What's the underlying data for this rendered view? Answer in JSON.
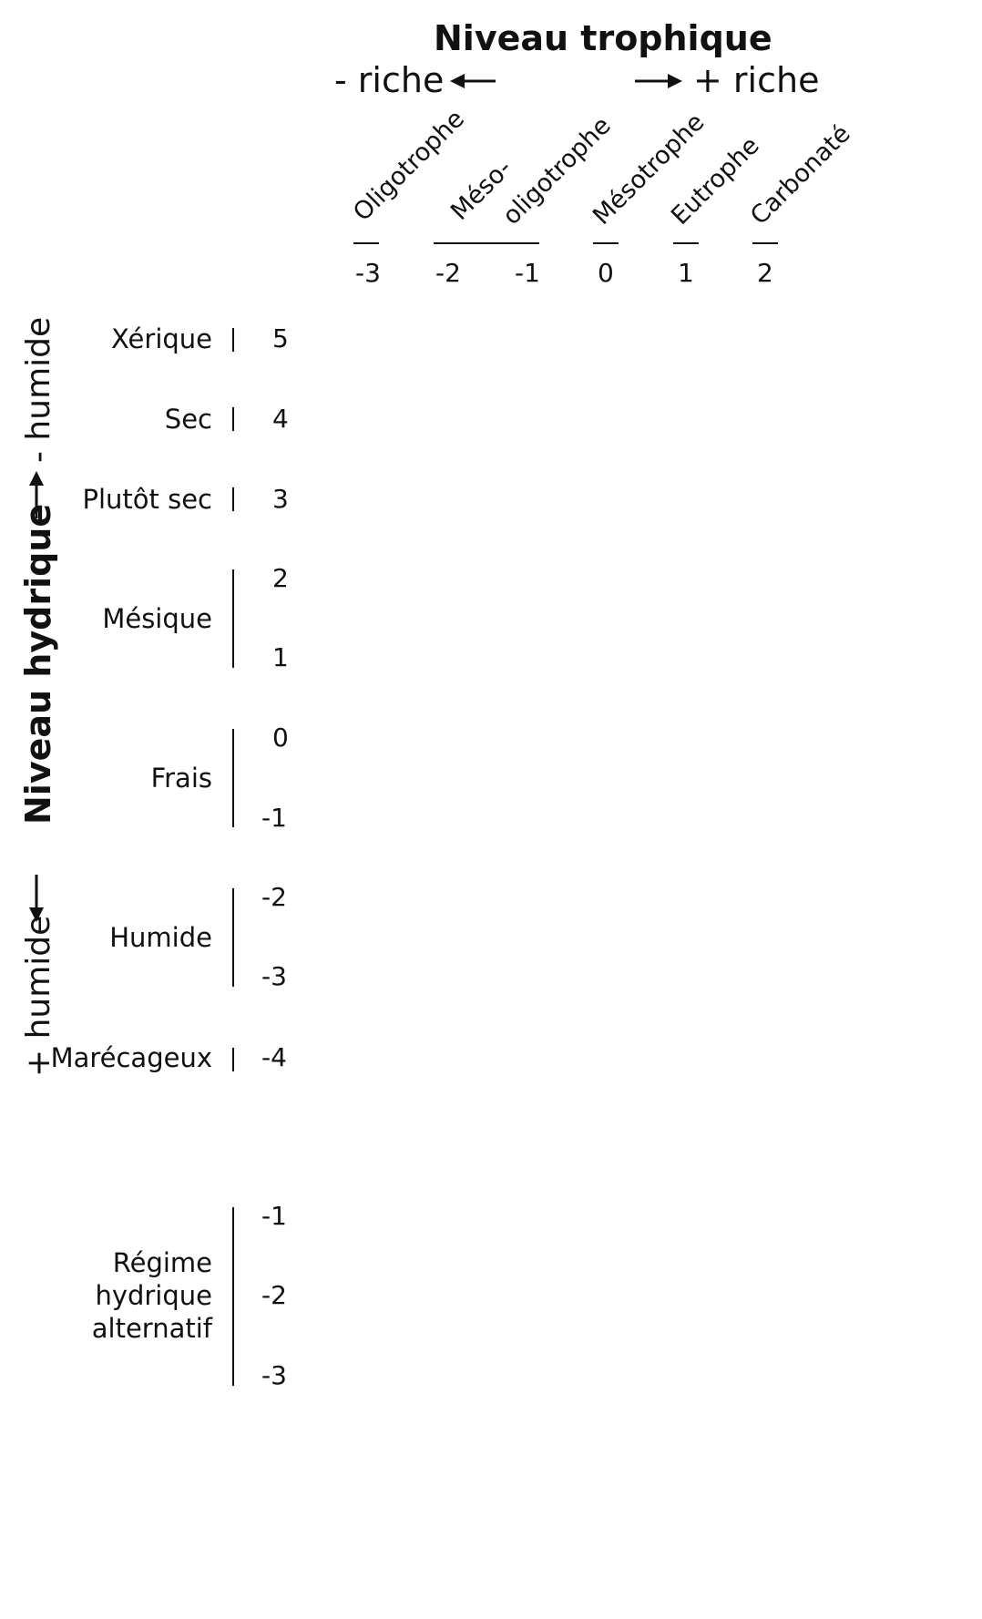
{
  "trophic": {
    "title": "Niveau trophique",
    "less_rich": "- riche",
    "more_rich": "+ riche",
    "categories": [
      "Oligotrophe",
      "Méso-",
      "oligotrophe",
      "Mésotrophe",
      "Eutrophe",
      "Carbonaté"
    ],
    "values": [
      "-3",
      "-2",
      "-1",
      "0",
      "1",
      "2"
    ]
  },
  "hydric": {
    "title": "Niveau hydrique",
    "less_wet": "- humide",
    "more_wet": "+ humide",
    "levels": [
      {
        "label": "Xérique",
        "values": [
          "5"
        ]
      },
      {
        "label": "Sec",
        "values": [
          "4"
        ]
      },
      {
        "label": "Plutôt sec",
        "values": [
          "3"
        ]
      },
      {
        "label": "Mésique",
        "values": [
          "2",
          "1"
        ]
      },
      {
        "label": "Frais",
        "values": [
          "0",
          "-1"
        ]
      },
      {
        "label": "Humide",
        "values": [
          "-2",
          "-3"
        ]
      },
      {
        "label": "Marécageux",
        "values": [
          "-4"
        ]
      }
    ],
    "alternating": {
      "label_lines": [
        "Régime",
        "hydrique",
        "alternatif"
      ],
      "values": [
        "-1",
        "-2",
        "-3"
      ]
    }
  }
}
